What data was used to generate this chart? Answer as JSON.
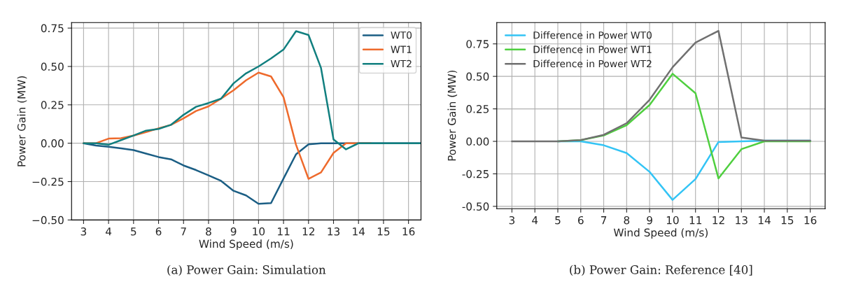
{
  "chart_data": [
    {
      "type": "line",
      "xlabel": "Wind Speed (m/s)",
      "ylabel": "Power Gain (MW)",
      "annotations": [
        "(a) Power Gain: Simulation"
      ],
      "x": [
        3,
        3.5,
        4,
        4.5,
        5,
        5.5,
        6,
        6.5,
        7,
        7.5,
        8,
        8.5,
        9,
        9.5,
        10,
        10.5,
        11,
        11.5,
        12,
        12.5,
        13,
        13.5,
        14,
        14.5,
        15,
        15.5,
        16,
        16.5
      ],
      "series": [
        {
          "name": "WT0",
          "color": "#1b5e84",
          "values": [
            0,
            -0.015,
            -0.023,
            -0.033,
            -0.045,
            -0.068,
            -0.09,
            -0.105,
            -0.145,
            -0.175,
            -0.21,
            -0.245,
            -0.31,
            -0.34,
            -0.395,
            -0.39,
            -0.23,
            -0.072,
            -0.007,
            0,
            0,
            0,
            0,
            0,
            0,
            0,
            0,
            0
          ]
        },
        {
          "name": "WT1",
          "color": "#ee6a2c",
          "values": [
            0,
            0,
            0.03,
            0.033,
            0.05,
            0.072,
            0.097,
            0.12,
            0.162,
            0.21,
            0.24,
            0.29,
            0.345,
            0.41,
            0.46,
            0.435,
            0.3,
            -0.01,
            -0.232,
            -0.19,
            -0.063,
            0,
            0,
            0,
            null,
            null,
            null,
            null
          ]
        },
        {
          "name": "WT2",
          "color": "#117f7f",
          "values": [
            0,
            0,
            -0.01,
            0.02,
            0.05,
            0.082,
            0.093,
            0.12,
            0.185,
            0.237,
            0.262,
            0.29,
            0.39,
            0.455,
            0.5,
            0.552,
            0.61,
            0.73,
            0.705,
            0.49,
            0.025,
            -0.04,
            0,
            0,
            0,
            0,
            0,
            0
          ]
        }
      ],
      "xlim": [
        2.52,
        16.5
      ],
      "ylim": [
        -0.5,
        0.786
      ],
      "xticks": [
        3,
        4,
        5,
        6,
        7,
        8,
        9,
        10,
        11,
        12,
        13,
        14,
        15,
        16
      ],
      "yticks": [
        {
          "value": -0.5,
          "label": "−0.50"
        },
        {
          "value": -0.25,
          "label": "−0.25"
        },
        {
          "value": 0,
          "label": "0.00"
        },
        {
          "value": 0.25,
          "label": "0.25"
        },
        {
          "value": 0.5,
          "label": "0.50"
        },
        {
          "value": 0.75,
          "label": "0.75"
        }
      ],
      "grid": true,
      "legend": "top right"
    },
    {
      "type": "line",
      "xlabel": "Wind Speed (m/s)",
      "ylabel": "Power Gain (MW)",
      "annotations": [
        "(b) Power Gain: Reference [40]"
      ],
      "x": [
        3,
        4,
        5,
        6,
        7,
        8,
        9,
        10,
        11,
        12,
        13,
        14,
        15,
        16
      ],
      "series": [
        {
          "name": "Difference in Power WT0",
          "color": "#33c4f5",
          "values": [
            null,
            null,
            0,
            0,
            -0.03,
            -0.09,
            -0.235,
            -0.45,
            -0.29,
            -0.005,
            0,
            0.005,
            0.005,
            0.005
          ]
        },
        {
          "name": "Difference in Power WT1",
          "color": "#4fcf3f",
          "values": [
            null,
            null,
            0,
            0.01,
            0.045,
            0.125,
            0.28,
            0.52,
            0.37,
            -0.285,
            -0.06,
            0,
            0,
            0
          ]
        },
        {
          "name": "Difference in Power WT2",
          "color": "#707070",
          "values": [
            0,
            0,
            0,
            0.01,
            0.05,
            0.14,
            0.32,
            0.57,
            0.76,
            0.85,
            0.03,
            0.005,
            0.005,
            0.005
          ]
        }
      ],
      "xlim": [
        2.34,
        16.65
      ],
      "ylim": [
        -0.518,
        0.914
      ],
      "xticks": [
        3,
        4,
        5,
        6,
        7,
        8,
        9,
        10,
        11,
        12,
        13,
        14,
        15,
        16
      ],
      "yticks": [
        {
          "value": -0.5,
          "label": "-0.50"
        },
        {
          "value": -0.25,
          "label": "-0.25"
        },
        {
          "value": 0,
          "label": "0.00"
        },
        {
          "value": 0.25,
          "label": "0.25"
        },
        {
          "value": 0.5,
          "label": "0.50"
        },
        {
          "value": 0.75,
          "label": "0.75"
        }
      ],
      "grid": true,
      "legend": "upper left"
    }
  ]
}
